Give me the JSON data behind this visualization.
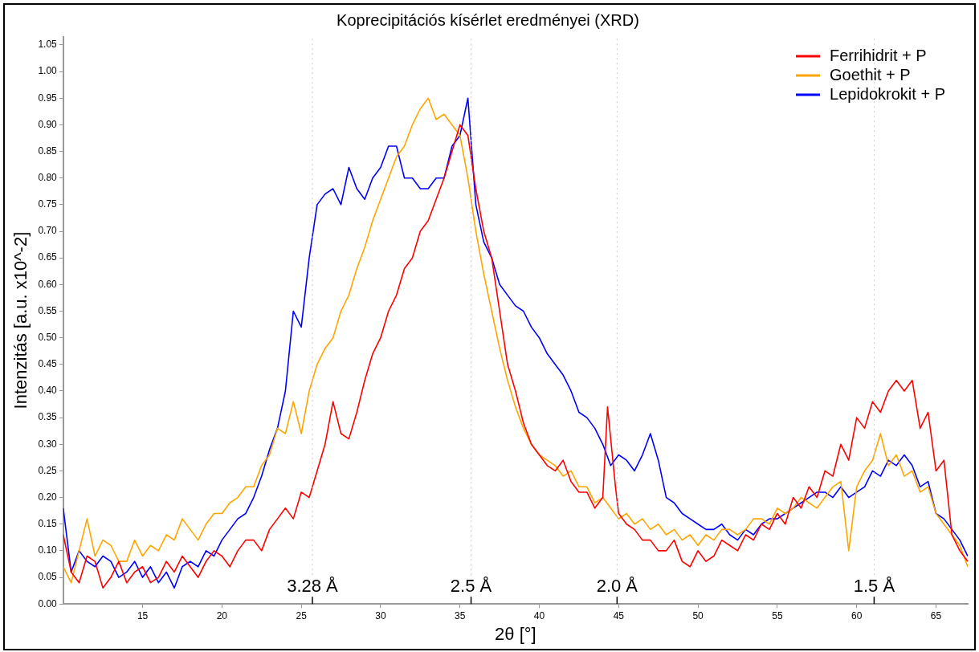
{
  "chart_data": {
    "type": "line",
    "title": "Koprecipitációs kísérlet eredményei (XRD)",
    "xlabel": "2θ [°]",
    "ylabel": "Intenzitás [a.u. x10^-2]",
    "xlim": [
      10,
      67
    ],
    "xticks": [
      15,
      20,
      25,
      30,
      35,
      40,
      45,
      50,
      55,
      60,
      65
    ],
    "ylim": [
      0,
      1.065
    ],
    "yticks": [
      {
        "value": 0,
        "label": "0.00"
      },
      {
        "value": 0.05,
        "label": "0.05"
      },
      {
        "value": 0.1,
        "label": "0.10"
      },
      {
        "value": 0.15,
        "label": "0.15"
      },
      {
        "value": 0.2,
        "label": "0.20"
      },
      {
        "value": 0.25,
        "label": "0.25"
      },
      {
        "value": 0.3,
        "label": "0.30"
      },
      {
        "value": 0.35,
        "label": "0.35"
      },
      {
        "value": 0.4,
        "label": "0.40"
      },
      {
        "value": 0.45,
        "label": "0.45"
      },
      {
        "value": 0.5,
        "label": "0.50"
      },
      {
        "value": 0.55,
        "label": "0.55"
      },
      {
        "value": 0.6,
        "label": "0.60"
      },
      {
        "value": 0.65,
        "label": "0.65"
      },
      {
        "value": 0.7,
        "label": "0.70"
      },
      {
        "value": 0.75,
        "label": "0.75"
      },
      {
        "value": 0.8,
        "label": "0.80"
      },
      {
        "value": 0.85,
        "label": "0.85"
      },
      {
        "value": 0.9,
        "label": "0.90"
      },
      {
        "value": 0.95,
        "label": "0.95"
      },
      {
        "value": 1,
        "label": "1.00"
      },
      {
        "value": 1.05,
        "label": "1.05"
      }
    ],
    "grid": false,
    "legend": "top right",
    "marker": "none",
    "line_style": "solid",
    "ref_lines": [
      {
        "axis": "x",
        "value": 25.7,
        "label": "3.28 Å"
      },
      {
        "axis": "x",
        "value": 35.7,
        "label": "2.5 Å"
      },
      {
        "axis": "x",
        "value": 44.9,
        "label": "2.0 Å"
      },
      {
        "axis": "x",
        "value": 61.1,
        "label": "1.5 Å"
      }
    ],
    "series": [
      {
        "name": "Ferrihidrit + P",
        "color": "#ff0000",
        "x": [
          10,
          10.5,
          11,
          11.5,
          12,
          12.5,
          13,
          13.5,
          14,
          14.5,
          15,
          15.5,
          16,
          16.5,
          17,
          17.5,
          18,
          18.5,
          19,
          19.5,
          20,
          20.5,
          21,
          21.5,
          22,
          22.5,
          23,
          23.5,
          24,
          24.5,
          25,
          25.5,
          26,
          26.5,
          27,
          27.5,
          28,
          28.5,
          29,
          29.5,
          30,
          30.5,
          31,
          31.5,
          32,
          32.5,
          33,
          33.5,
          34,
          34.5,
          35,
          35.5,
          36,
          36.5,
          37,
          37.5,
          38,
          38.5,
          39,
          39.5,
          40,
          40.5,
          41,
          41.5,
          42,
          42.5,
          43,
          43.5,
          44,
          44.3,
          44.8,
          45,
          45.5,
          46,
          46.5,
          47,
          47.5,
          48,
          48.5,
          49,
          49.5,
          50,
          50.5,
          51,
          51.5,
          52,
          52.5,
          53,
          53.5,
          54,
          54.5,
          55,
          55.5,
          56,
          56.5,
          57,
          57.5,
          58,
          58.5,
          59,
          59.5,
          60,
          60.5,
          61,
          61.5,
          62,
          62.5,
          63,
          63.5,
          64,
          64.5,
          65,
          65.5,
          66,
          66.5,
          67
        ],
        "values": [
          0.13,
          0.06,
          0.04,
          0.09,
          0.08,
          0.03,
          0.05,
          0.08,
          0.04,
          0.06,
          0.07,
          0.04,
          0.05,
          0.08,
          0.06,
          0.09,
          0.07,
          0.05,
          0.08,
          0.1,
          0.09,
          0.07,
          0.1,
          0.12,
          0.12,
          0.1,
          0.14,
          0.16,
          0.18,
          0.16,
          0.21,
          0.2,
          0.25,
          0.3,
          0.38,
          0.32,
          0.31,
          0.36,
          0.42,
          0.47,
          0.5,
          0.55,
          0.58,
          0.63,
          0.65,
          0.7,
          0.72,
          0.76,
          0.8,
          0.85,
          0.9,
          0.88,
          0.78,
          0.7,
          0.65,
          0.55,
          0.45,
          0.4,
          0.34,
          0.3,
          0.28,
          0.26,
          0.25,
          0.27,
          0.23,
          0.21,
          0.21,
          0.18,
          0.2,
          0.37,
          0.22,
          0.17,
          0.15,
          0.14,
          0.12,
          0.12,
          0.1,
          0.1,
          0.12,
          0.08,
          0.07,
          0.1,
          0.08,
          0.09,
          0.12,
          0.11,
          0.1,
          0.13,
          0.12,
          0.15,
          0.14,
          0.17,
          0.15,
          0.2,
          0.18,
          0.22,
          0.2,
          0.25,
          0.24,
          0.3,
          0.27,
          0.35,
          0.33,
          0.38,
          0.36,
          0.4,
          0.42,
          0.4,
          0.42,
          0.33,
          0.36,
          0.25,
          0.27,
          0.13,
          0.1,
          0.08
        ]
      },
      {
        "name": "Goethit + P",
        "color": "#ffa500",
        "x": [
          10,
          10.5,
          11,
          11.5,
          12,
          12.5,
          13,
          13.5,
          14,
          14.5,
          15,
          15.5,
          16,
          16.5,
          17,
          17.5,
          18,
          18.5,
          19,
          19.5,
          20,
          20.5,
          21,
          21.5,
          22,
          22.5,
          23,
          23.5,
          24,
          24.5,
          25,
          25.5,
          26,
          26.5,
          27,
          27.5,
          28,
          28.5,
          29,
          29.5,
          30,
          30.5,
          31,
          31.5,
          32,
          32.5,
          33,
          33.5,
          34,
          34.5,
          35,
          35.5,
          36,
          36.5,
          37,
          37.5,
          38,
          38.5,
          39,
          39.5,
          40,
          40.5,
          41,
          41.5,
          42,
          42.5,
          43,
          43.5,
          44,
          44.5,
          45,
          45.5,
          46,
          46.5,
          47,
          47.5,
          48,
          48.5,
          49,
          49.5,
          50,
          50.5,
          51,
          51.5,
          52,
          52.5,
          53,
          53.5,
          54,
          54.5,
          55,
          55.5,
          56,
          56.5,
          57,
          57.5,
          58,
          58.5,
          59,
          59.5,
          60,
          60.5,
          61,
          61.5,
          62,
          62.5,
          63,
          63.5,
          64,
          64.5,
          65,
          65.5,
          66,
          66.5,
          67
        ],
        "values": [
          0.07,
          0.04,
          0.1,
          0.16,
          0.09,
          0.12,
          0.11,
          0.08,
          0.08,
          0.12,
          0.09,
          0.11,
          0.1,
          0.13,
          0.12,
          0.16,
          0.14,
          0.12,
          0.15,
          0.17,
          0.17,
          0.19,
          0.2,
          0.22,
          0.22,
          0.26,
          0.28,
          0.33,
          0.32,
          0.38,
          0.32,
          0.4,
          0.45,
          0.48,
          0.5,
          0.55,
          0.58,
          0.63,
          0.67,
          0.72,
          0.76,
          0.8,
          0.84,
          0.86,
          0.9,
          0.93,
          0.95,
          0.91,
          0.92,
          0.9,
          0.88,
          0.8,
          0.7,
          0.62,
          0.55,
          0.48,
          0.42,
          0.37,
          0.33,
          0.3,
          0.28,
          0.27,
          0.26,
          0.24,
          0.25,
          0.22,
          0.22,
          0.19,
          0.2,
          0.18,
          0.16,
          0.17,
          0.15,
          0.16,
          0.14,
          0.15,
          0.13,
          0.14,
          0.12,
          0.13,
          0.11,
          0.13,
          0.12,
          0.14,
          0.14,
          0.13,
          0.14,
          0.16,
          0.16,
          0.15,
          0.18,
          0.17,
          0.18,
          0.2,
          0.19,
          0.18,
          0.2,
          0.22,
          0.23,
          0.1,
          0.22,
          0.25,
          0.27,
          0.32,
          0.26,
          0.28,
          0.24,
          0.25,
          0.21,
          0.22,
          0.17,
          0.15,
          0.13,
          0.11,
          0.07
        ]
      },
      {
        "name": "Lepidokrokit + P",
        "color": "#0000ff",
        "x": [
          10,
          10.5,
          11,
          11.5,
          12,
          12.5,
          13,
          13.5,
          14,
          14.5,
          15,
          15.5,
          16,
          16.5,
          17,
          17.5,
          18,
          18.5,
          19,
          19.5,
          20,
          20.5,
          21,
          21.5,
          22,
          22.5,
          23,
          23.5,
          24,
          24.5,
          25,
          25.5,
          26,
          26.5,
          27,
          27.5,
          28,
          28.5,
          29,
          29.5,
          30,
          30.5,
          31,
          31.5,
          32,
          32.5,
          33,
          33.5,
          34,
          34.5,
          35,
          35.5,
          36,
          36.5,
          37,
          37.5,
          38,
          38.5,
          39,
          39.5,
          40,
          40.5,
          41,
          41.5,
          42,
          42.5,
          43,
          43.5,
          44,
          44.5,
          45,
          45.5,
          46,
          46.5,
          47,
          47.5,
          48,
          48.5,
          49,
          49.5,
          50,
          50.5,
          51,
          51.5,
          52,
          52.5,
          53,
          53.5,
          54,
          54.5,
          55,
          55.5,
          56,
          56.5,
          57,
          57.5,
          58,
          58.5,
          59,
          59.5,
          60,
          60.5,
          61,
          61.5,
          62,
          62.5,
          63,
          63.5,
          64,
          64.5,
          65,
          65.5,
          66,
          66.5,
          67
        ],
        "values": [
          0.18,
          0.06,
          0.1,
          0.08,
          0.07,
          0.09,
          0.08,
          0.05,
          0.06,
          0.08,
          0.05,
          0.07,
          0.04,
          0.06,
          0.03,
          0.07,
          0.08,
          0.07,
          0.1,
          0.09,
          0.12,
          0.14,
          0.16,
          0.17,
          0.2,
          0.24,
          0.29,
          0.33,
          0.4,
          0.55,
          0.52,
          0.65,
          0.75,
          0.77,
          0.78,
          0.75,
          0.82,
          0.78,
          0.76,
          0.8,
          0.82,
          0.86,
          0.86,
          0.8,
          0.8,
          0.78,
          0.78,
          0.8,
          0.8,
          0.86,
          0.88,
          0.95,
          0.75,
          0.68,
          0.65,
          0.6,
          0.58,
          0.56,
          0.55,
          0.52,
          0.5,
          0.47,
          0.45,
          0.43,
          0.4,
          0.36,
          0.35,
          0.33,
          0.3,
          0.26,
          0.28,
          0.27,
          0.25,
          0.28,
          0.32,
          0.27,
          0.2,
          0.19,
          0.17,
          0.16,
          0.15,
          0.14,
          0.14,
          0.15,
          0.13,
          0.12,
          0.14,
          0.13,
          0.15,
          0.16,
          0.16,
          0.17,
          0.18,
          0.19,
          0.2,
          0.21,
          0.21,
          0.2,
          0.22,
          0.2,
          0.21,
          0.22,
          0.25,
          0.24,
          0.27,
          0.26,
          0.28,
          0.26,
          0.22,
          0.23,
          0.17,
          0.16,
          0.14,
          0.12,
          0.09
        ]
      }
    ]
  }
}
